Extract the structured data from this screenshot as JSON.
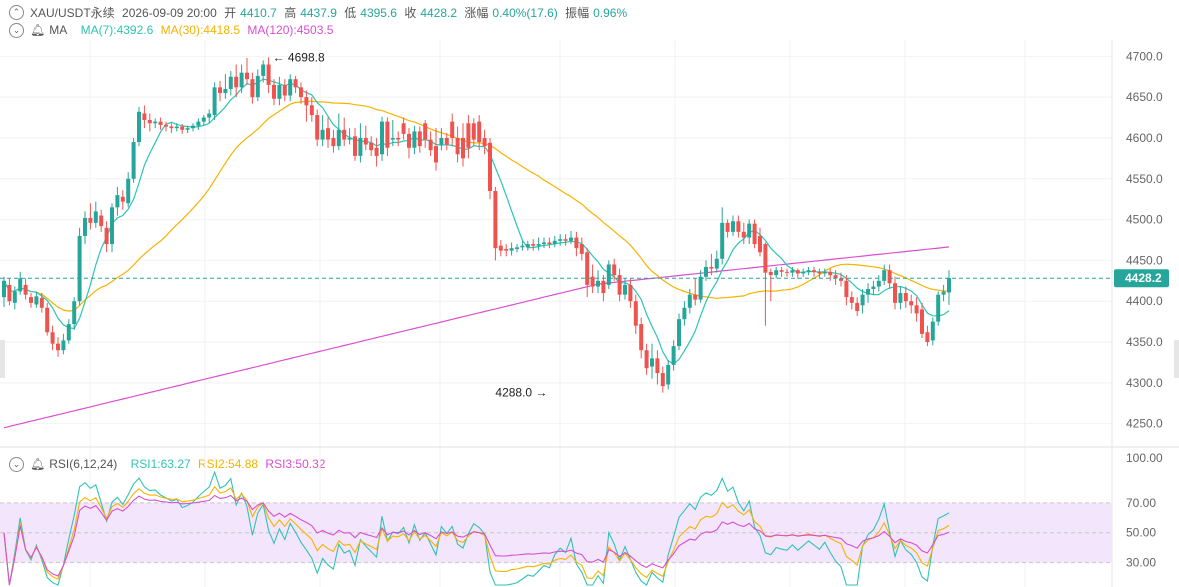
{
  "header": {
    "symbol": "XAU/USDT永续",
    "datetime": "2026-09-09 20:00",
    "open_label": "开",
    "open": "4410.7",
    "high_label": "高",
    "high": "4437.9",
    "low_label": "低",
    "low": "4395.6",
    "close_label": "收",
    "close": "4428.2",
    "change_label": "涨幅",
    "change": "0.40%(17.6)",
    "amplitude_label": "振幅",
    "amplitude": "0.96%"
  },
  "ma_legend": {
    "label": "MA",
    "ma7": "MA(7):4392.6",
    "ma30": "MA(30):4418.5",
    "ma120": "MA(120):4503.5"
  },
  "rsi_legend": {
    "label": "RSI(6,12,24)",
    "rsi1": "RSI1:63.27",
    "rsi2": "RSI2:54.88",
    "rsi3": "RSI3:50.32"
  },
  "colors": {
    "up": "#26a69a",
    "down": "#ef5350",
    "ma7": "#2ec4b6",
    "ma30": "#f5b301",
    "ma120": "#d94fd0",
    "rsi_band": "#f3e5fb"
  },
  "chart_data": [
    {
      "type": "candlestick",
      "title": "",
      "ylim": [
        4230,
        4720
      ],
      "y_ticks": [
        "4700.0",
        "4650.0",
        "4600.0",
        "4550.0",
        "4500.0",
        "4450.0",
        "4400.0",
        "4350.0",
        "4300.0",
        "4250.0"
      ],
      "y_tick_values": [
        4700,
        4650,
        4600,
        4550,
        4500,
        4450,
        4400,
        4350,
        4300,
        4250
      ],
      "last_price": 4428.2,
      "last_price_label": "4428.2",
      "high_marker": {
        "value": 4698.8,
        "label": "4698.8",
        "index": 49
      },
      "low_marker": {
        "value": 4288.0,
        "label": "4288.0",
        "index": 101
      },
      "candles": [
        [
          4405,
          4425,
          4393,
          4430
        ],
        [
          4420,
          4400,
          4395,
          4428
        ],
        [
          4398,
          4412,
          4390,
          4418
        ],
        [
          4412,
          4428,
          4408,
          4436
        ],
        [
          4420,
          4408,
          4402,
          4428
        ],
        [
          4405,
          4398,
          4392,
          4410
        ],
        [
          4396,
          4406,
          4392,
          4412
        ],
        [
          4404,
          4392,
          4386,
          4410
        ],
        [
          4392,
          4362,
          4358,
          4398
        ],
        [
          4362,
          4348,
          4340,
          4370
        ],
        [
          4348,
          4340,
          4332,
          4356
        ],
        [
          4340,
          4352,
          4335,
          4360
        ],
        [
          4352,
          4372,
          4348,
          4378
        ],
        [
          4372,
          4400,
          4365,
          4405
        ],
        [
          4400,
          4480,
          4395,
          4490
        ],
        [
          4480,
          4502,
          4470,
          4510
        ],
        [
          4502,
          4496,
          4488,
          4520
        ],
        [
          4496,
          4510,
          4490,
          4522
        ],
        [
          4505,
          4492,
          4485,
          4512
        ],
        [
          4490,
          4470,
          4460,
          4498
        ],
        [
          4470,
          4515,
          4460,
          4520
        ],
        [
          4515,
          4530,
          4505,
          4540
        ],
        [
          4528,
          4522,
          4512,
          4536
        ],
        [
          4520,
          4550,
          4515,
          4558
        ],
        [
          4550,
          4595,
          4545,
          4600
        ],
        [
          4595,
          4632,
          4590,
          4638
        ],
        [
          4630,
          4622,
          4612,
          4640
        ],
        [
          4622,
          4618,
          4608,
          4630
        ],
        [
          4618,
          4620,
          4612,
          4624
        ],
        [
          4620,
          4616,
          4610,
          4625
        ],
        [
          4616,
          4614,
          4608,
          4620
        ],
        [
          4614,
          4612,
          4606,
          4618
        ],
        [
          4612,
          4614,
          4608,
          4618
        ],
        [
          4614,
          4610,
          4605,
          4617
        ],
        [
          4610,
          4612,
          4606,
          4615
        ],
        [
          4612,
          4615,
          4608,
          4618
        ],
        [
          4615,
          4620,
          4610,
          4624
        ],
        [
          4620,
          4625,
          4615,
          4628
        ],
        [
          4625,
          4630,
          4618,
          4635
        ],
        [
          4628,
          4662,
          4622,
          4668
        ],
        [
          4662,
          4655,
          4645,
          4670
        ],
        [
          4655,
          4660,
          4648,
          4678
        ],
        [
          4660,
          4675,
          4652,
          4682
        ],
        [
          4675,
          4662,
          4650,
          4690
        ],
        [
          4662,
          4680,
          4655,
          4690
        ],
        [
          4680,
          4672,
          4665,
          4698
        ],
        [
          4672,
          4650,
          4642,
          4680
        ],
        [
          4650,
          4676,
          4645,
          4684
        ],
        [
          4676,
          4690,
          4668,
          4695
        ],
        [
          4690,
          4665,
          4655,
          4698.8
        ],
        [
          4665,
          4648,
          4640,
          4672
        ],
        [
          4648,
          4665,
          4640,
          4675
        ],
        [
          4665,
          4652,
          4645,
          4672
        ],
        [
          4652,
          4672,
          4645,
          4678
        ],
        [
          4672,
          4662,
          4655,
          4676
        ],
        [
          4662,
          4650,
          4642,
          4668
        ],
        [
          4650,
          4640,
          4620,
          4658
        ],
        [
          4640,
          4628,
          4620,
          4650
        ],
        [
          4628,
          4598,
          4590,
          4635
        ],
        [
          4598,
          4610,
          4590,
          4628
        ],
        [
          4612,
          4598,
          4588,
          4625
        ],
        [
          4600,
          4590,
          4582,
          4610
        ],
        [
          4590,
          4610,
          4585,
          4630
        ],
        [
          4610,
          4598,
          4590,
          4625
        ],
        [
          4598,
          4600,
          4592,
          4612
        ],
        [
          4602,
          4578,
          4572,
          4612
        ],
        [
          4578,
          4600,
          4570,
          4618
        ],
        [
          4600,
          4592,
          4585,
          4615
        ],
        [
          4594,
          4585,
          4578,
          4602
        ],
        [
          4588,
          4578,
          4565,
          4600
        ],
        [
          4580,
          4620,
          4572,
          4626
        ],
        [
          4620,
          4588,
          4578,
          4625
        ],
        [
          4598,
          4600,
          4590,
          4622
        ],
        [
          4600,
          4598,
          4590,
          4608
        ],
        [
          4618,
          4605,
          4598,
          4625
        ],
        [
          4605,
          4588,
          4575,
          4612
        ],
        [
          4588,
          4608,
          4580,
          4615
        ],
        [
          4608,
          4590,
          4582,
          4614
        ],
        [
          4618,
          4598,
          4588,
          4622
        ],
        [
          4598,
          4585,
          4578,
          4608
        ],
        [
          4590,
          4570,
          4560,
          4612
        ],
        [
          4592,
          4600,
          4585,
          4612
        ],
        [
          4600,
          4592,
          4585,
          4606
        ],
        [
          4620,
          4600,
          4590,
          4630
        ],
        [
          4600,
          4580,
          4570,
          4614
        ],
        [
          4600,
          4575,
          4565,
          4618
        ],
        [
          4618,
          4588,
          4575,
          4628
        ],
        [
          4618,
          4598,
          4590,
          4624
        ],
        [
          4620,
          4595,
          4585,
          4628
        ],
        [
          4600,
          4590,
          4580,
          4610
        ],
        [
          4594,
          4535,
          4525,
          4600
        ],
        [
          4535,
          4465,
          4450,
          4540
        ],
        [
          4468,
          4462,
          4455,
          4475
        ],
        [
          4464,
          4462,
          4455,
          4470
        ],
        [
          4462,
          4465,
          4456,
          4472
        ],
        [
          4464,
          4466,
          4460,
          4470
        ],
        [
          4466,
          4468,
          4462,
          4474
        ],
        [
          4466,
          4470,
          4462,
          4474
        ],
        [
          4470,
          4468,
          4462,
          4476
        ],
        [
          4468,
          4470,
          4462,
          4478
        ],
        [
          4470,
          4472,
          4465,
          4478
        ],
        [
          4472,
          4470,
          4465,
          4478
        ],
        [
          4470,
          4474,
          4466,
          4480
        ],
        [
          4474,
          4476,
          4468,
          4482
        ],
        [
          4476,
          4474,
          4468,
          4482
        ],
        [
          4474,
          4478,
          4470,
          4486
        ],
        [
          4478,
          4465,
          4455,
          4485
        ],
        [
          4470,
          4458,
          4450,
          4478
        ],
        [
          4460,
          4420,
          4405,
          4465
        ],
        [
          4430,
          4418,
          4410,
          4445
        ],
        [
          4418,
          4425,
          4410,
          4438
        ],
        [
          4425,
          4410,
          4400,
          4432
        ],
        [
          4420,
          4445,
          4415,
          4450
        ],
        [
          4445,
          4432,
          4425,
          4452
        ],
        [
          4432,
          4408,
          4400,
          4440
        ],
        [
          4408,
          4420,
          4402,
          4428
        ],
        [
          4420,
          4400,
          4392,
          4428
        ],
        [
          4400,
          4370,
          4360,
          4408
        ],
        [
          4372,
          4340,
          4330,
          4380
        ],
        [
          4340,
          4318,
          4310,
          4348
        ],
        [
          4320,
          4330,
          4305,
          4348
        ],
        [
          4330,
          4312,
          4298,
          4340
        ],
        [
          4312,
          4296,
          4288,
          4320
        ],
        [
          4298,
          4322,
          4292,
          4328
        ],
        [
          4322,
          4345,
          4315,
          4352
        ],
        [
          4345,
          4378,
          4340,
          4385
        ],
        [
          4378,
          4392,
          4370,
          4400
        ],
        [
          4392,
          4408,
          4385,
          4415
        ],
        [
          4408,
          4402,
          4395,
          4428
        ],
        [
          4402,
          4430,
          4398,
          4438
        ],
        [
          4430,
          4442,
          4425,
          4450
        ],
        [
          4442,
          4440,
          4432,
          4458
        ],
        [
          4440,
          4452,
          4435,
          4462
        ],
        [
          4452,
          4496,
          4445,
          4515
        ],
        [
          4496,
          4485,
          4478,
          4500
        ],
        [
          4485,
          4498,
          4480,
          4505
        ],
        [
          4498,
          4485,
          4478,
          4505
        ],
        [
          4485,
          4478,
          4470,
          4496
        ],
        [
          4478,
          4495,
          4470,
          4500
        ],
        [
          4495,
          4470,
          4465,
          4500
        ],
        [
          4480,
          4460,
          4455,
          4490
        ],
        [
          4470,
          4435,
          4370,
          4472
        ],
        [
          4436,
          4432,
          4400,
          4440
        ],
        [
          4432,
          4438,
          4428,
          4442
        ],
        [
          4438,
          4436,
          4430,
          4442
        ],
        [
          4436,
          4435,
          4430,
          4440
        ],
        [
          4435,
          4438,
          4430,
          4442
        ],
        [
          4438,
          4434,
          4428,
          4440
        ],
        [
          4434,
          4436,
          4430,
          4440
        ],
        [
          4436,
          4438,
          4432,
          4442
        ],
        [
          4438,
          4436,
          4430,
          4442
        ],
        [
          4436,
          4434,
          4428,
          4440
        ],
        [
          4434,
          4436,
          4430,
          4440
        ],
        [
          4436,
          4432,
          4425,
          4440
        ],
        [
          4432,
          4428,
          4420,
          4438
        ],
        [
          4428,
          4425,
          4418,
          4435
        ],
        [
          4425,
          4405,
          4395,
          4432
        ],
        [
          4405,
          4398,
          4390,
          4412
        ],
        [
          4398,
          4388,
          4382,
          4405
        ],
        [
          4395,
          4408,
          4385,
          4415
        ],
        [
          4408,
          4415,
          4398,
          4422
        ],
        [
          4415,
          4418,
          4408,
          4425
        ],
        [
          4418,
          4425,
          4412,
          4432
        ],
        [
          4425,
          4438,
          4420,
          4445
        ],
        [
          4438,
          4422,
          4415,
          4445
        ],
        [
          4422,
          4398,
          4390,
          4430
        ],
        [
          4398,
          4410,
          4390,
          4418
        ],
        [
          4410,
          4400,
          4392,
          4418
        ],
        [
          4400,
          4395,
          4385,
          4408
        ],
        [
          4395,
          4385,
          4375,
          4405
        ],
        [
          4390,
          4360,
          4355,
          4398
        ],
        [
          4362,
          4350,
          4345,
          4370
        ],
        [
          4352,
          4375,
          4346,
          4380
        ],
        [
          4375,
          4408,
          4370,
          4412
        ],
        [
          4408,
          4412,
          4400,
          4420
        ],
        [
          4410.7,
          4428.2,
          4395.6,
          4437.9
        ]
      ]
    },
    {
      "type": "line",
      "title": "",
      "ylim": [
        15,
        100
      ],
      "y_ticks": [
        "100.00",
        "70.00",
        "50.00",
        "30.00"
      ],
      "y_tick_values": [
        100,
        70,
        50,
        30
      ],
      "band": [
        30,
        70
      ],
      "series": [
        {
          "name": "RSI1",
          "values": [
            63.27
          ]
        },
        {
          "name": "RSI2",
          "values": [
            54.88
          ]
        },
        {
          "name": "RSI3",
          "values": [
            50.32
          ]
        }
      ]
    }
  ]
}
